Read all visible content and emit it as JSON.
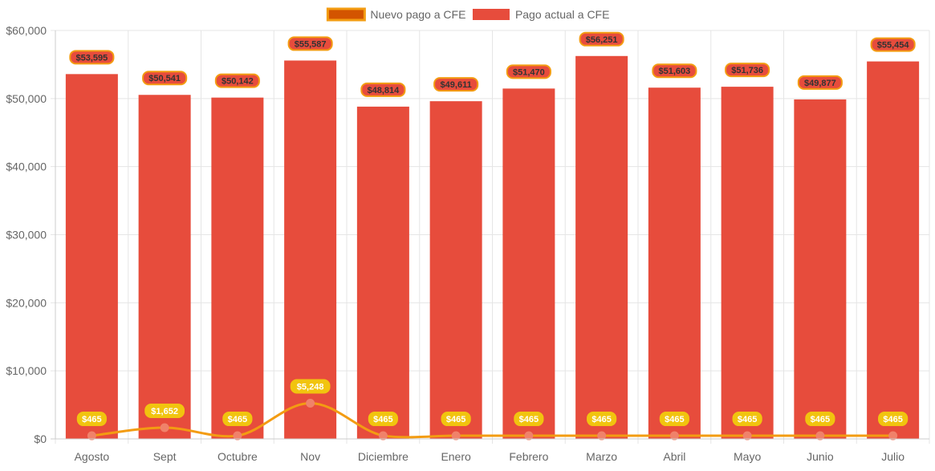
{
  "chart_data": {
    "type": "bar",
    "categories": [
      "Agosto",
      "Sept",
      "Octubre",
      "Nov",
      "Diciembre",
      "Enero",
      "Febrero",
      "Marzo",
      "Abril",
      "Mayo",
      "Junio",
      "Julio"
    ],
    "series": [
      {
        "name": "Nuevo pago a CFE",
        "type": "line",
        "values": [
          465,
          1652,
          465,
          5248,
          465,
          465,
          465,
          465,
          465,
          465,
          465,
          465
        ],
        "labels": [
          "$465",
          "$1,652",
          "$465",
          "$5,248",
          "$465",
          "$465",
          "$465",
          "$465",
          "$465",
          "$465",
          "$465",
          "$465"
        ],
        "color": "#f39c12",
        "point_color": "#f0826a",
        "legend_fill": "#d35400",
        "label_bg": "#f1c40f",
        "label_text_color": "#ffffff"
      },
      {
        "name": "Pago actual a CFE",
        "type": "bar",
        "values": [
          53595,
          50541,
          50142,
          55587,
          48814,
          49611,
          51470,
          56251,
          51603,
          51736,
          49877,
          55454
        ],
        "labels": [
          "$53,595",
          "$50,541",
          "$50,142",
          "$55,587",
          "$48,814",
          "$49,611",
          "$51,470",
          "$56,251",
          "$51,603",
          "$51,736",
          "$49,877",
          "$55,454"
        ],
        "color": "#e74c3c",
        "label_bg": "#e74c3c",
        "label_border": "#f39c12",
        "label_text_color": "#333333"
      }
    ],
    "ylim": [
      0,
      60000
    ],
    "yticks": [
      0,
      10000,
      20000,
      30000,
      40000,
      50000,
      60000
    ],
    "ytick_labels": [
      "$0",
      "$10,000",
      "$20,000",
      "$30,000",
      "$40,000",
      "$50,000",
      "$60,000"
    ],
    "grid": true,
    "legend_position": "top",
    "title": "",
    "xlabel": "",
    "ylabel": ""
  }
}
